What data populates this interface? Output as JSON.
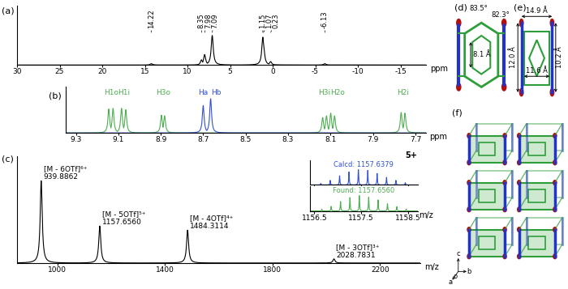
{
  "chart_data": [
    {
      "type": "peaks",
      "title": "(a)",
      "x_label": "ppm",
      "xlim": [
        30,
        -18
      ],
      "xticks": [
        30,
        25,
        20,
        15,
        10,
        5,
        0,
        -5,
        -10,
        -15
      ],
      "ylim": [
        0,
        1.7
      ],
      "tick_labels": "x",
      "color": "#000000",
      "x": [
        14.22,
        8.35,
        7.98,
        7.09,
        1.15,
        1.07,
        0.23,
        -6.13
      ],
      "values": [
        0.04,
        0.15,
        0.3,
        0.85,
        0.8,
        0.6,
        0.1,
        0.04
      ],
      "annotations": [
        {
          "text": "14.22",
          "x": 14.22
        },
        {
          "text": "8.35",
          "x": 8.35
        },
        {
          "text": "7.98",
          "x": 7.98
        },
        {
          "text": "7.09",
          "x": 7.09
        },
        {
          "text": "1.15",
          "x": 1.15
        },
        {
          "text": "1.07",
          "x": 1.07
        },
        {
          "text": "0.23",
          "x": 0.23
        },
        {
          "text": "-6.13",
          "x": -6.13
        }
      ]
    },
    {
      "type": "peaks",
      "title": "(b)",
      "x_label": "ppm",
      "xlim": [
        9.35,
        7.65
      ],
      "xticks": [
        9.3,
        9.1,
        8.9,
        8.7,
        8.5,
        8.3,
        8.1,
        7.9,
        7.7
      ],
      "ylim": [
        0,
        1.35
      ],
      "tick_labels": "x",
      "series": [
        {
          "color": "#4caf50",
          "x": [
            9.145,
            9.125,
            9.085,
            9.065,
            8.897,
            8.882,
            8.137,
            8.119,
            8.099,
            8.081,
            7.767,
            7.749
          ],
          "values": [
            0.7,
            0.72,
            0.72,
            0.68,
            0.52,
            0.5,
            0.45,
            0.5,
            0.58,
            0.5,
            0.6,
            0.58
          ]
        },
        {
          "color": "#3050d8",
          "x": [
            8.7,
            8.665
          ],
          "values": [
            0.8,
            1.0
          ]
        }
      ],
      "annotations": [
        {
          "text": "H1o",
          "x": 9.135,
          "color": "#4caf50"
        },
        {
          "text": "H1i",
          "x": 9.075,
          "color": "#4caf50"
        },
        {
          "text": "H3o",
          "x": 8.89,
          "color": "#4caf50"
        },
        {
          "text": "Ha",
          "x": 8.7,
          "color": "#3050d8"
        },
        {
          "text": "Hb",
          "x": 8.665,
          "color": "#3050d8"
        },
        {
          "text": "H3i",
          "x": 8.128,
          "color": "#4caf50"
        },
        {
          "text": "H2o",
          "x": 8.09,
          "color": "#4caf50"
        },
        {
          "text": "H2i",
          "x": 7.758,
          "color": "#4caf50"
        }
      ]
    },
    {
      "type": "peaks",
      "title": "(c)",
      "x_label": "m/z",
      "xlim": [
        850,
        2350
      ],
      "xticks": [
        1000,
        1400,
        1800,
        2200
      ],
      "ylim": [
        0,
        1.3
      ],
      "tick_labels": "x",
      "color": "#000000",
      "x": [
        939.8862,
        1157.656,
        1484.3114,
        2028.7831
      ],
      "values": [
        1.0,
        0.45,
        0.4,
        0.05
      ],
      "annotations": [
        {
          "x": 939.8862,
          "lines": [
            "[M - 6OTf]⁶⁺",
            "939.8862"
          ]
        },
        {
          "x": 1157.656,
          "lines": [
            "[M - 5OTf]⁵⁺",
            "1157.6560"
          ]
        },
        {
          "x": 1484.3114,
          "lines": [
            "[M - 4OTf]⁴⁺",
            "1484.3114"
          ]
        },
        {
          "x": 2028.7831,
          "lines": [
            "[M - 3OTf]³⁺",
            "2028.7831"
          ]
        }
      ]
    },
    {
      "type": "peaks",
      "title": "5+",
      "x_label": "m/z",
      "xlim": [
        1156.4,
        1158.7
      ],
      "xticks": [
        1156.5,
        1157.5,
        1158.5
      ],
      "ylim": [
        0,
        1.6
      ],
      "tick_labels": "x",
      "series": [
        {
          "color": "#3050d8",
          "x": [
            1156.64,
            1156.84,
            1157.04,
            1157.24,
            1157.44,
            1157.64,
            1157.84,
            1158.04,
            1158.24,
            1158.44
          ],
          "values": [
            0.1,
            0.3,
            0.6,
            0.85,
            1.0,
            0.95,
            0.75,
            0.5,
            0.3,
            0.15
          ]
        },
        {
          "color": "#4caf50",
          "x": [
            1156.66,
            1156.86,
            1157.06,
            1157.26,
            1157.46,
            1157.66,
            1157.86,
            1158.06,
            1158.26,
            1158.46
          ],
          "values": [
            0.12,
            0.3,
            0.62,
            0.88,
            1.0,
            0.9,
            0.72,
            0.48,
            0.28,
            0.13
          ]
        }
      ],
      "annotations": [
        {
          "text": "Calcd: 1157.6379",
          "color": "#3050d8"
        },
        {
          "text": "Found: 1157.6560",
          "color": "#4caf50"
        }
      ]
    }
  ],
  "structures": {
    "d": {
      "title": "(d)",
      "angles": [
        "83.5°",
        "82.3°"
      ],
      "distances": [
        "8.1 Å"
      ]
    },
    "e": {
      "title": "(e)",
      "distances": [
        "14.9 Å",
        "12.0 Å",
        "10.2 Å",
        "11.6 Å"
      ]
    },
    "f": {
      "title": "(f)",
      "axis_labels": [
        "o",
        "c",
        "b",
        "a"
      ]
    }
  }
}
